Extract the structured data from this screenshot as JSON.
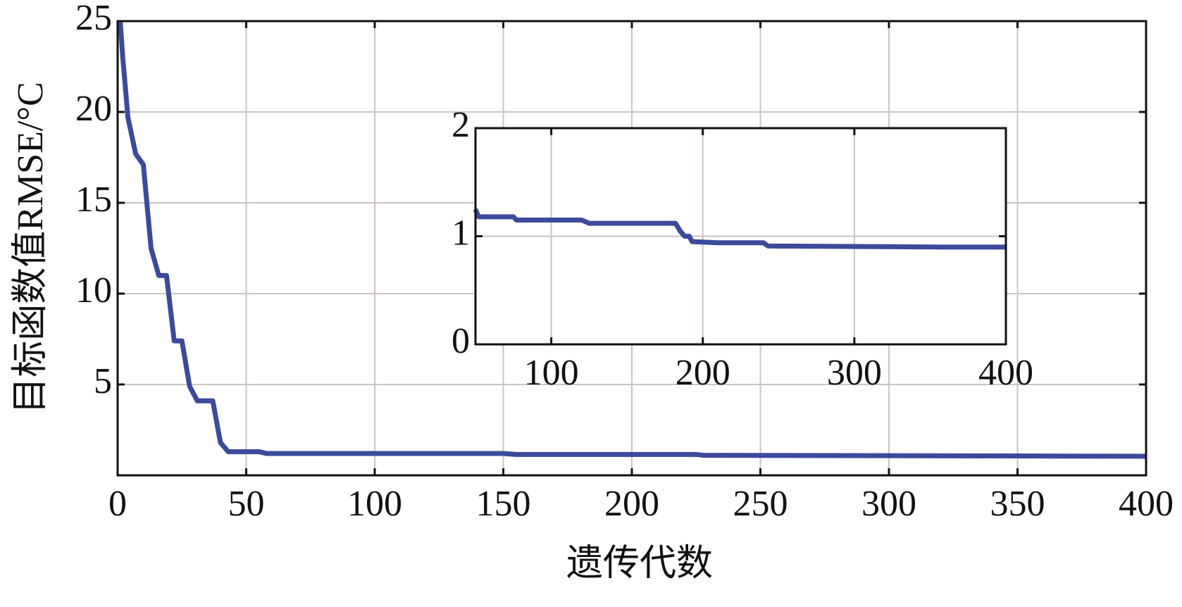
{
  "chart_data": [
    {
      "type": "line",
      "xlabel": "遗传代数",
      "ylabel": "目标函数值RMSE/°C",
      "x": [
        1,
        2,
        4,
        7,
        10,
        13,
        16,
        19,
        22,
        25,
        28,
        31,
        37,
        40,
        43,
        55,
        58,
        150,
        155,
        225,
        228,
        400
      ],
      "series": [
        {
          "color": "#3b4a9b",
          "values": [
            25,
            23,
            19.7,
            17.7,
            17.1,
            12.5,
            11,
            11,
            7.4,
            7.4,
            4.9,
            4.1,
            4.1,
            1.8,
            1.3,
            1.3,
            1.2,
            1.2,
            1.15,
            1.15,
            1.1,
            1.05
          ]
        }
      ],
      "xlim": [
        0,
        400
      ],
      "xticks": [
        0,
        50,
        100,
        150,
        200,
        250,
        300,
        350,
        400
      ],
      "ylim": [
        0,
        25
      ],
      "yticks": [
        5,
        10,
        15,
        20,
        25
      ],
      "grid": true
    },
    {
      "type": "line",
      "x": [
        50,
        52,
        75,
        77,
        120,
        125,
        182,
        185,
        188,
        191,
        193,
        210,
        240,
        243,
        360,
        400
      ],
      "series": [
        {
          "color": "#3b4a9b",
          "values": [
            1.25,
            1.18,
            1.18,
            1.15,
            1.15,
            1.12,
            1.12,
            1.05,
            1.0,
            1.0,
            0.95,
            0.94,
            0.94,
            0.91,
            0.9,
            0.9
          ]
        }
      ],
      "xlim": [
        50,
        400
      ],
      "xticks": [
        100,
        200,
        300,
        400
      ],
      "ylim": [
        0,
        2
      ],
      "yticks": [
        0,
        1,
        2
      ],
      "grid": true
    }
  ]
}
